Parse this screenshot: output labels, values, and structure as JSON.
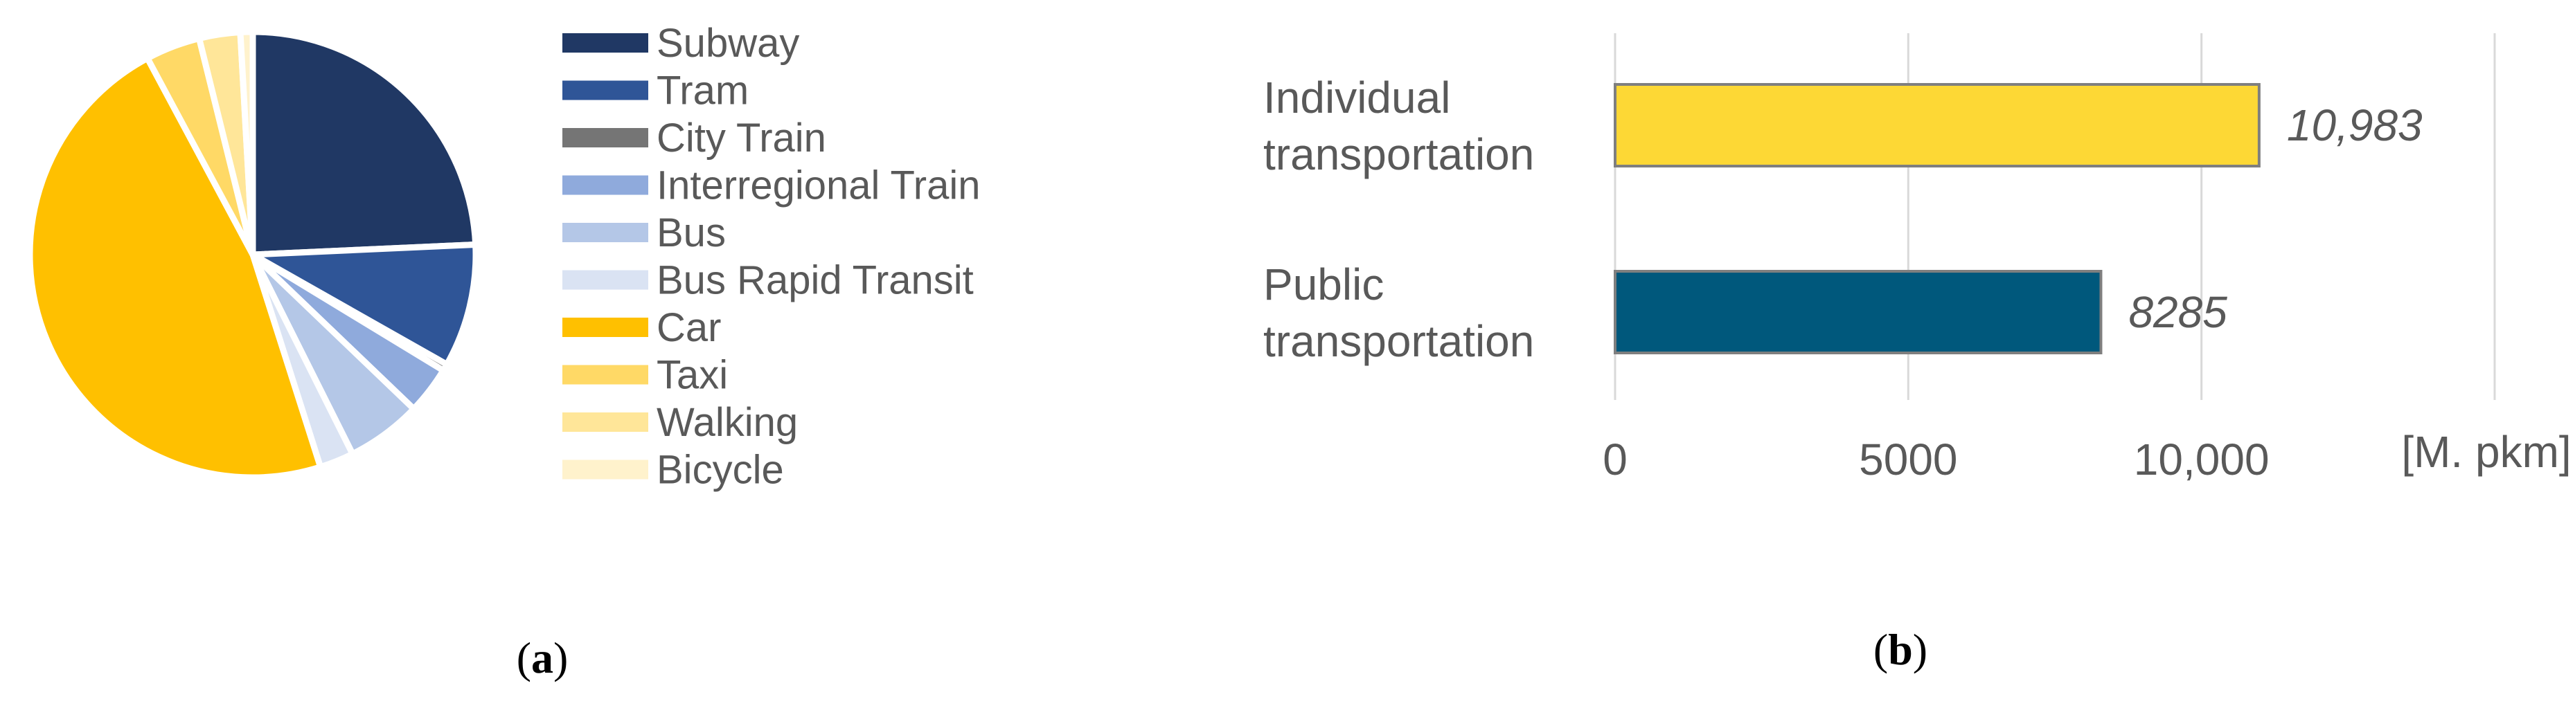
{
  "chart_data": [
    {
      "type": "pie",
      "panel": "a",
      "slices": [
        {
          "label": "Subway",
          "value": 24.5,
          "color": "#203864"
        },
        {
          "label": "Tram",
          "value": 9.0,
          "color": "#2F5597"
        },
        {
          "label": "City Train",
          "value": 0.5,
          "color": "#757575"
        },
        {
          "label": "Interregional Train",
          "value": 3.5,
          "color": "#8FAADC"
        },
        {
          "label": "Bus",
          "value": 5.5,
          "color": "#B4C7E7"
        },
        {
          "label": "Bus Rapid Transit",
          "value": 2.5,
          "color": "#DAE3F3"
        },
        {
          "label": "Car",
          "value": 47.5,
          "color": "#FFC000"
        },
        {
          "label": "Taxi",
          "value": 4.0,
          "color": "#FFD966"
        },
        {
          "label": "Walking",
          "value": 3.0,
          "color": "#FFE699"
        },
        {
          "label": "Bicycle",
          "value": 0.9,
          "color": "#FFF2CC"
        }
      ],
      "legend_position": "right"
    },
    {
      "type": "bar",
      "orientation": "horizontal",
      "panel": "b",
      "categories": [
        "Individual transportation",
        "Public transportation"
      ],
      "category_lines": [
        [
          "Individual",
          "transportation"
        ],
        [
          "Public",
          "transportation"
        ]
      ],
      "values": [
        10983,
        8285
      ],
      "value_labels": [
        "10,983",
        "8285"
      ],
      "colors": [
        "#FDD835",
        "#00587C"
      ],
      "xlim": [
        0,
        15000
      ],
      "xticks": [
        0,
        5000,
        10000,
        15000
      ],
      "xtick_labels": [
        "0",
        "5000",
        "10,000",
        ""
      ],
      "xunit": "[M. pkm]",
      "grid": true
    }
  ],
  "panel_labels": {
    "a": {
      "open": "(",
      "letter": "a",
      "close": ")"
    },
    "b": {
      "open": "(",
      "letter": "b",
      "close": ")"
    }
  }
}
